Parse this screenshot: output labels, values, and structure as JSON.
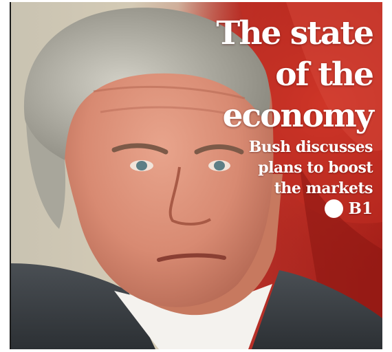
{
  "headline": {
    "lines": [
      "The state",
      "of the",
      "economy"
    ]
  },
  "subhead": {
    "lines": [
      "Bush discusses",
      "plans to boost",
      "the markets"
    ]
  },
  "page_reference": "B1",
  "colors": {
    "text": "#ffffff",
    "flag_red": "#c0261e",
    "background": "#ffffff"
  }
}
